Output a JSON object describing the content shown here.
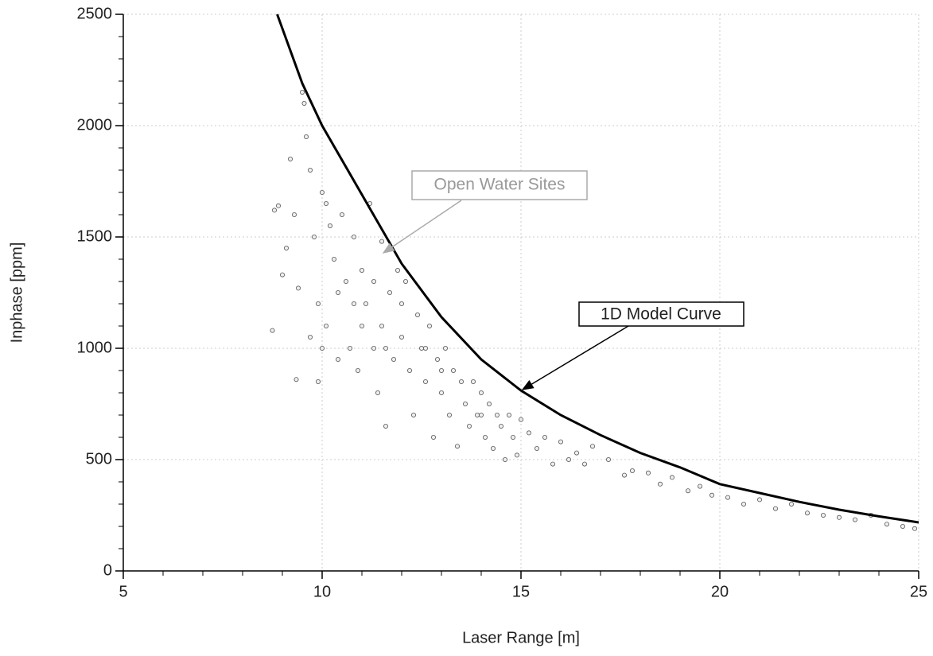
{
  "chart_data": {
    "type": "scatter",
    "xlabel": "Laser Range [m]",
    "ylabel": "Inphase [ppm]",
    "xlim": [
      5,
      25
    ],
    "ylim": [
      0,
      2500
    ],
    "xticks": [
      5,
      10,
      15,
      20,
      25
    ],
    "yticks": [
      0,
      500,
      1000,
      1500,
      2000,
      2500
    ],
    "xminorticks": [
      6,
      7,
      8,
      9,
      11,
      12,
      13,
      14,
      16,
      17,
      18,
      19,
      21,
      22,
      23,
      24
    ],
    "yminorticks": [
      100,
      200,
      300,
      400,
      600,
      700,
      800,
      900,
      1100,
      1200,
      1300,
      1400,
      1600,
      1700,
      1800,
      1900,
      2100,
      2200,
      2300,
      2400
    ],
    "grid": true,
    "series": [
      {
        "name": "Open Water Sites",
        "color": "#555555",
        "x": [
          8.8,
          8.9,
          8.75,
          9.0,
          9.1,
          9.2,
          9.3,
          9.4,
          9.35,
          9.5,
          9.55,
          9.6,
          9.7,
          9.8,
          9.9,
          9.7,
          9.9,
          10.0,
          10.1,
          10.2,
          10.3,
          10.1,
          10.4,
          10.5,
          10.6,
          10.7,
          10.8,
          10.9,
          11.0,
          11.1,
          11.2,
          11.3,
          11.4,
          11.5,
          11.5,
          11.6,
          11.7,
          11.8,
          11.9,
          12.0,
          12.1,
          12.2,
          12.3,
          12.4,
          12.5,
          12.6,
          12.7,
          12.8,
          12.9,
          13.0,
          13.1,
          13.2,
          13.3,
          13.4,
          13.5,
          13.6,
          13.7,
          13.8,
          13.9,
          14.0,
          14.1,
          14.2,
          14.3,
          14.4,
          14.5,
          14.6,
          14.7,
          14.8,
          14.9,
          15.0,
          15.2,
          15.4,
          15.6,
          15.8,
          16.0,
          16.2,
          16.4,
          16.6,
          16.8,
          17.2,
          17.6,
          17.8,
          18.2,
          18.5,
          18.8,
          19.2,
          19.5,
          19.8,
          20.2,
          20.6,
          21.0,
          21.4,
          21.8,
          22.2,
          22.6,
          23.0,
          23.4,
          23.8,
          24.2,
          24.6,
          24.9,
          10.0,
          10.4,
          11.0,
          11.6,
          12.0,
          13.0,
          10.8,
          11.3,
          12.6,
          14.0
        ],
        "values": [
          1620,
          1640,
          1080,
          1330,
          1450,
          1850,
          1600,
          1270,
          860,
          2150,
          2100,
          1950,
          1800,
          1500,
          1200,
          1050,
          850,
          1700,
          1650,
          1550,
          1400,
          1100,
          950,
          1600,
          1300,
          1000,
          1500,
          900,
          1350,
          1200,
          1650,
          1000,
          800,
          1480,
          1100,
          650,
          1250,
          950,
          1350,
          1050,
          1300,
          900,
          700,
          1150,
          1000,
          850,
          1100,
          600,
          950,
          800,
          1000,
          700,
          900,
          560,
          850,
          750,
          650,
          850,
          700,
          800,
          600,
          750,
          550,
          700,
          650,
          500,
          700,
          600,
          520,
          680,
          620,
          550,
          600,
          480,
          580,
          500,
          530,
          480,
          560,
          500,
          430,
          450,
          440,
          390,
          420,
          360,
          380,
          340,
          330,
          300,
          320,
          280,
          300,
          260,
          250,
          240,
          230,
          250,
          210,
          200,
          190,
          1000,
          1250,
          1100,
          1000,
          1200,
          900,
          1200,
          1300,
          1000,
          700
        ]
      },
      {
        "name": "1D Model Curve",
        "type": "line",
        "color": "#000000",
        "x": [
          8.87,
          9.5,
          10,
          11,
          12,
          13,
          14,
          15,
          16,
          17,
          18,
          19,
          20,
          21,
          22,
          23,
          24,
          25
        ],
        "values": [
          2500,
          2190,
          2000,
          1690,
          1380,
          1140,
          950,
          810,
          700,
          610,
          530,
          465,
          390,
          350,
          310,
          275,
          245,
          218
        ]
      }
    ]
  }
}
